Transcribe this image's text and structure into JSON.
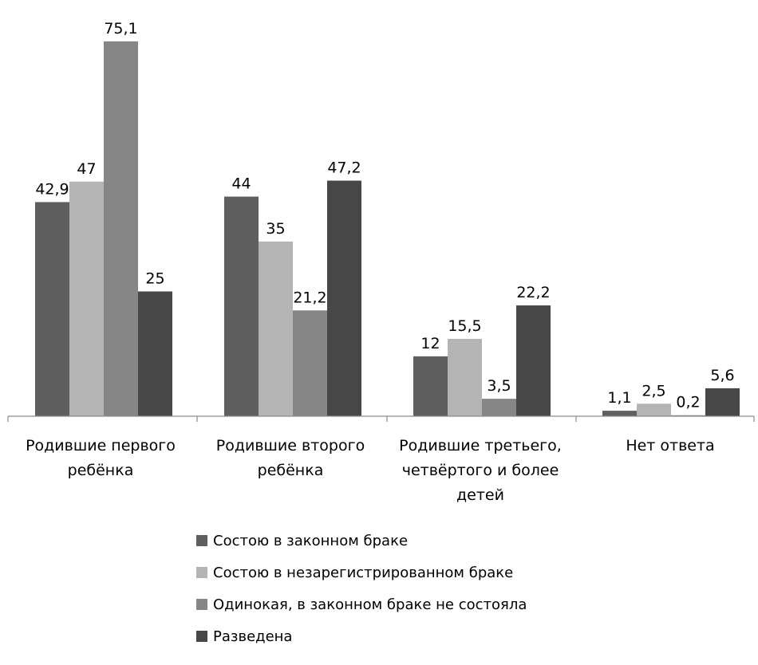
{
  "chart_data": {
    "type": "bar",
    "title": "",
    "xlabel": "",
    "ylabel": "",
    "ylim": [
      0,
      80
    ],
    "grid": false,
    "legend_position": "bottom",
    "categories": [
      [
        "Родившие первого",
        "ребёнка"
      ],
      [
        "Родившие второго",
        "ребёнка"
      ],
      [
        "Родившие третьего,",
        "четвёртого и более",
        "детей"
      ],
      [
        "Нет ответа"
      ]
    ],
    "series": [
      {
        "name": "Состою в законном браке",
        "color": "#5f5f5f",
        "values": [
          42.9,
          44,
          12,
          1.1
        ],
        "labels": [
          "42,9",
          "44",
          "12",
          "1,1"
        ]
      },
      {
        "name": "Состою в незарегистрированном браке",
        "color": "#b4b4b4",
        "values": [
          47,
          35,
          15.5,
          2.5
        ],
        "labels": [
          "47",
          "35",
          "15,5",
          "2,5"
        ]
      },
      {
        "name": "Одинокая, в законном браке не состояла",
        "color": "#868686",
        "values": [
          75.1,
          21.2,
          3.5,
          0.2
        ],
        "labels": [
          "75,1",
          "21,2",
          "3,5",
          "0,2"
        ]
      },
      {
        "name": "Разведена",
        "color": "#474747",
        "values": [
          25,
          47.2,
          22.2,
          5.6
        ],
        "labels": [
          "25",
          "47,2",
          "22,2",
          "5,6"
        ]
      }
    ]
  }
}
